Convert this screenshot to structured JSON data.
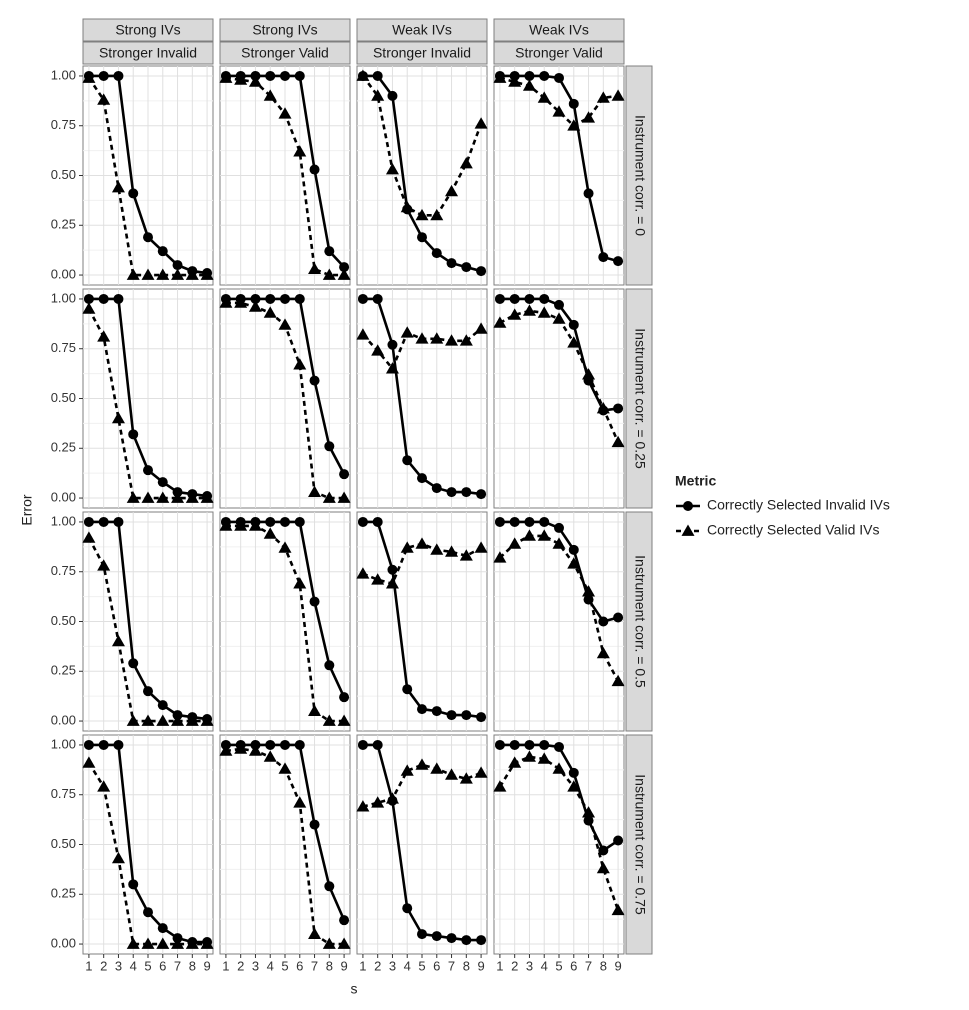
{
  "chart_data": {
    "type": "line",
    "x_label": "s",
    "y_label": "Error",
    "legend_title": "Metric",
    "x": [
      1,
      2,
      3,
      4,
      5,
      6,
      7,
      8,
      9
    ],
    "xlim": [
      0.6,
      9.4
    ],
    "xticks": [
      1,
      2,
      3,
      4,
      5,
      6,
      7,
      8,
      9
    ],
    "ylim": [
      -0.05,
      1.05
    ],
    "yticks": [
      {
        "value": 0,
        "label": "0.00"
      },
      {
        "value": 0.25,
        "label": "0.25"
      },
      {
        "value": 0.5,
        "label": "0.50"
      },
      {
        "value": 0.75,
        "label": "0.75"
      },
      {
        "value": 1,
        "label": "1.00"
      }
    ],
    "grid": true,
    "legend": "right",
    "columns": [
      {
        "top": "Strong IVs",
        "bottom": "Stronger Invalid"
      },
      {
        "top": "Strong IVs",
        "bottom": "Stronger Valid"
      },
      {
        "top": "Weak IVs",
        "bottom": "Stronger Invalid"
      },
      {
        "top": "Weak IVs",
        "bottom": "Stronger Valid"
      }
    ],
    "rows": [
      "Instrument corr. = 0",
      "Instrument corr. = 0.25",
      "Instrument corr. = 0.5",
      "Instrument corr. = 0.75"
    ],
    "series": [
      {
        "name": "Correctly Selected Invalid IVs",
        "color": "#000000",
        "line": "solid",
        "marker": "circle"
      },
      {
        "name": "Correctly Selected Valid IVs",
        "color": "#000000",
        "line": "dashed",
        "marker": "triangle"
      }
    ],
    "panels": [
      [
        [
          [
            1,
            1,
            1,
            0.41,
            0.19,
            0.12,
            0.05,
            0.02,
            0.01
          ],
          [
            0.99,
            0.88,
            0.44,
            0,
            0,
            0,
            0,
            0,
            0
          ]
        ],
        [
          [
            1,
            1,
            1,
            1,
            1,
            1,
            0.53,
            0.12,
            0.04
          ],
          [
            0.99,
            0.98,
            0.97,
            0.9,
            0.81,
            0.62,
            0.03,
            0,
            0
          ]
        ],
        [
          [
            1,
            1,
            0.9,
            0.33,
            0.19,
            0.11,
            0.06,
            0.04,
            0.02
          ],
          [
            1,
            0.9,
            0.53,
            0.34,
            0.3,
            0.3,
            0.42,
            0.56,
            0.76
          ]
        ],
        [
          [
            1,
            1,
            1,
            1,
            0.99,
            0.86,
            0.41,
            0.09,
            0.07
          ],
          [
            0.99,
            0.97,
            0.95,
            0.89,
            0.82,
            0.75,
            0.79,
            0.89,
            0.9
          ]
        ]
      ],
      [
        [
          [
            1,
            1,
            1,
            0.32,
            0.14,
            0.08,
            0.03,
            0.02,
            0.01
          ],
          [
            0.95,
            0.81,
            0.4,
            0,
            0,
            0,
            0,
            0,
            0
          ]
        ],
        [
          [
            1,
            1,
            1,
            1,
            1,
            1,
            0.59,
            0.26,
            0.12
          ],
          [
            0.98,
            0.98,
            0.96,
            0.93,
            0.87,
            0.67,
            0.03,
            0,
            0
          ]
        ],
        [
          [
            1,
            1,
            0.77,
            0.19,
            0.1,
            0.05,
            0.03,
            0.03,
            0.02
          ],
          [
            0.82,
            0.74,
            0.65,
            0.83,
            0.8,
            0.8,
            0.79,
            0.79,
            0.85
          ]
        ],
        [
          [
            1,
            1,
            1,
            1,
            0.97,
            0.87,
            0.59,
            0.44,
            0.45
          ],
          [
            0.88,
            0.92,
            0.94,
            0.93,
            0.9,
            0.78,
            0.62,
            0.45,
            0.28
          ]
        ]
      ],
      [
        [
          [
            1,
            1,
            1,
            0.29,
            0.15,
            0.08,
            0.03,
            0.02,
            0.01
          ],
          [
            0.92,
            0.78,
            0.4,
            0,
            0,
            0,
            0,
            0,
            0
          ]
        ],
        [
          [
            1,
            1,
            1,
            1,
            1,
            1,
            0.6,
            0.28,
            0.12
          ],
          [
            0.98,
            0.98,
            0.98,
            0.94,
            0.87,
            0.69,
            0.05,
            0,
            0
          ]
        ],
        [
          [
            1,
            1,
            0.76,
            0.16,
            0.06,
            0.05,
            0.03,
            0.03,
            0.02
          ],
          [
            0.74,
            0.71,
            0.69,
            0.87,
            0.89,
            0.86,
            0.85,
            0.83,
            0.87
          ]
        ],
        [
          [
            1,
            1,
            1,
            1,
            0.97,
            0.86,
            0.61,
            0.5,
            0.52
          ],
          [
            0.82,
            0.89,
            0.93,
            0.93,
            0.89,
            0.79,
            0.65,
            0.34,
            0.2
          ]
        ]
      ],
      [
        [
          [
            1,
            1,
            1,
            0.3,
            0.16,
            0.08,
            0.03,
            0.01,
            0.01
          ],
          [
            0.91,
            0.79,
            0.43,
            0,
            0,
            0,
            0,
            0,
            0
          ]
        ],
        [
          [
            1,
            1,
            1,
            1,
            1,
            1,
            0.6,
            0.29,
            0.12
          ],
          [
            0.97,
            0.98,
            0.97,
            0.94,
            0.88,
            0.71,
            0.05,
            0,
            0
          ]
        ],
        [
          [
            1,
            1,
            0.72,
            0.18,
            0.05,
            0.04,
            0.03,
            0.02,
            0.02
          ],
          [
            0.69,
            0.71,
            0.73,
            0.87,
            0.9,
            0.88,
            0.85,
            0.83,
            0.86
          ]
        ],
        [
          [
            1,
            1,
            1,
            1,
            0.99,
            0.86,
            0.62,
            0.47,
            0.52
          ],
          [
            0.79,
            0.91,
            0.94,
            0.93,
            0.88,
            0.79,
            0.66,
            0.38,
            0.17
          ]
        ]
      ]
    ]
  }
}
